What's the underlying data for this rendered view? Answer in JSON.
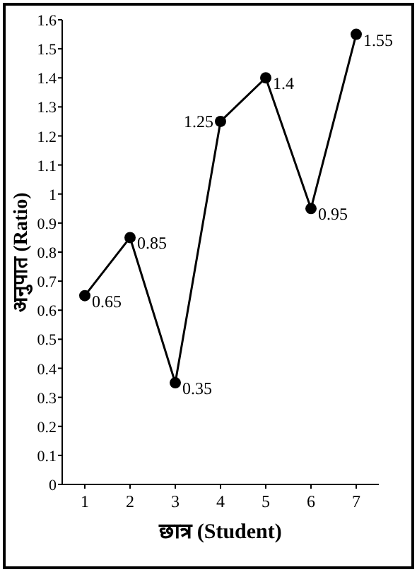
{
  "chart_data": {
    "type": "line",
    "xlabel": "छात्र (Student)",
    "ylabel": "अनुपात (Ratio)",
    "categories": [
      "1",
      "2",
      "3",
      "4",
      "5",
      "6",
      "7"
    ],
    "series": [
      {
        "color": "#000000",
        "values": [
          0.65,
          0.85,
          0.35,
          1.25,
          1.4,
          0.95,
          1.55
        ]
      }
    ],
    "ylim": [
      0,
      1.6
    ],
    "yticks": [
      0,
      0.1,
      0.2,
      0.3,
      0.4,
      0.5,
      0.6,
      0.7,
      0.8,
      0.9,
      1,
      1.1,
      1.2,
      1.3,
      1.4,
      1.5,
      1.6
    ],
    "data_labels": true,
    "marker": "circle",
    "line_style": "solid"
  }
}
